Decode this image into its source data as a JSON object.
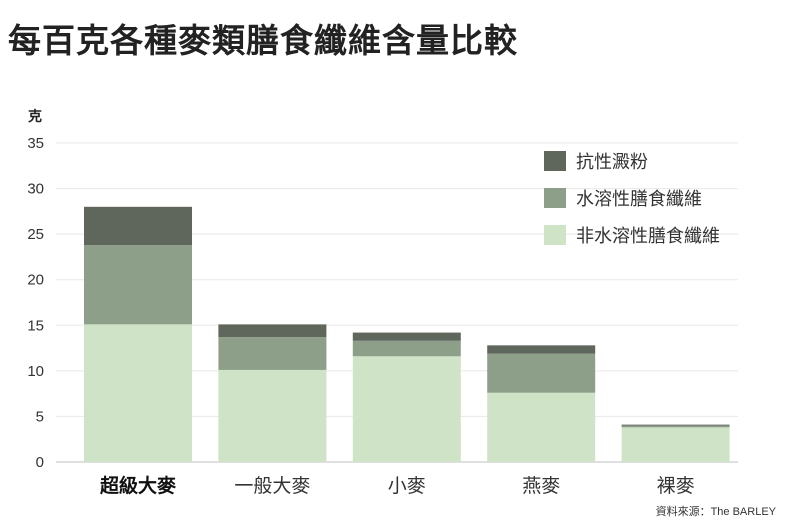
{
  "title": "每百克各種麥類膳食纖維含量比較",
  "source": "資料來源：The BARLEY",
  "chart_data": {
    "type": "bar",
    "stacked": true,
    "title": "每百克各種麥類膳食纖維含量比較",
    "ylabel": "克",
    "ylim": [
      0,
      35
    ],
    "yticks": [
      0,
      5,
      10,
      15,
      20,
      25,
      30,
      35
    ],
    "grid": true,
    "legend_position": "top-right",
    "categories": [
      "超級大麥",
      "一般大麥",
      "小麥",
      "燕麥",
      "裸麥"
    ],
    "highlight_category": "超級大麥",
    "series": [
      {
        "name": "非水溶性膳食纖維",
        "color": "#cfe3c6",
        "values": [
          15.1,
          10.1,
          11.6,
          7.6,
          3.8
        ]
      },
      {
        "name": "水溶性膳食纖維",
        "color": "#8e9f89",
        "values": [
          8.7,
          3.6,
          1.7,
          4.3,
          0.2
        ]
      },
      {
        "name": "抗性澱粉",
        "color": "#5f675d",
        "values": [
          4.2,
          1.4,
          0.9,
          0.9,
          0.1
        ]
      }
    ],
    "legend_order": [
      "抗性澱粉",
      "水溶性膳食纖維",
      "非水溶性膳食纖維"
    ]
  }
}
